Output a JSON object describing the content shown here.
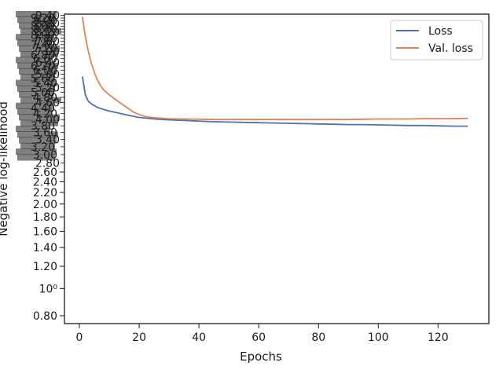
{
  "chart_data": {
    "type": "line",
    "xlabel": "Epochs",
    "ylabel": "Negative log-likelihood",
    "xlim": [
      -5,
      137
    ],
    "x_ticks": [
      0,
      20,
      40,
      60,
      80,
      100,
      120
    ],
    "x_tick_labels": [
      "0",
      "20",
      "40",
      "60",
      "80",
      "100",
      "120"
    ],
    "y_scale": "log",
    "ylim": [
      0.75,
      9.5
    ],
    "y_tick_labels_clean": [
      {
        "value": 0.8,
        "label": "0.80"
      },
      {
        "value": 1.0,
        "label": "10⁰"
      },
      {
        "value": 1.2,
        "label": "1.20"
      },
      {
        "value": 1.4,
        "label": "1.40"
      },
      {
        "value": 1.6,
        "label": "1.60"
      },
      {
        "value": 1.8,
        "label": "1.80"
      },
      {
        "value": 2.0,
        "label": "2.00"
      },
      {
        "value": 2.2,
        "label": "2.20"
      },
      {
        "value": 2.4,
        "label": "2.40"
      },
      {
        "value": 2.6,
        "label": "2.60"
      }
    ],
    "legend": {
      "position": "top-right",
      "entries": [
        "Loss",
        "Val. loss"
      ]
    },
    "grid": false,
    "series": [
      {
        "name": "Loss",
        "color": "#4c72b0",
        "x": [
          1,
          2,
          3,
          4,
          6,
          8,
          10,
          13,
          16,
          20,
          25,
          30,
          35,
          40,
          45,
          50,
          55,
          60,
          65,
          70,
          75,
          80,
          85,
          90,
          95,
          100,
          105,
          110,
          115,
          120,
          125,
          130
        ],
        "y": [
          5.7,
          4.9,
          4.65,
          4.55,
          4.42,
          4.35,
          4.29,
          4.22,
          4.15,
          4.07,
          4.02,
          3.99,
          3.97,
          3.95,
          3.93,
          3.92,
          3.91,
          3.9,
          3.89,
          3.88,
          3.87,
          3.86,
          3.85,
          3.84,
          3.84,
          3.83,
          3.82,
          3.81,
          3.81,
          3.8,
          3.79,
          3.79
        ]
      },
      {
        "name": "Val. loss",
        "color": "#dd8452",
        "x": [
          1,
          2,
          3,
          4,
          5,
          6,
          7,
          8,
          10,
          12,
          15,
          18,
          20,
          22,
          25,
          30,
          35,
          40,
          45,
          50,
          55,
          60,
          65,
          70,
          75,
          80,
          85,
          90,
          95,
          100,
          105,
          110,
          115,
          120,
          125,
          130
        ],
        "y": [
          9.3,
          7.9,
          7.0,
          6.35,
          5.9,
          5.55,
          5.3,
          5.12,
          4.9,
          4.72,
          4.48,
          4.26,
          4.17,
          4.1,
          4.06,
          4.03,
          4.02,
          4.01,
          4.0,
          4.0,
          4.0,
          4.0,
          4.0,
          4.0,
          4.0,
          4.0,
          4.0,
          4.0,
          4.01,
          4.02,
          4.02,
          4.02,
          4.03,
          4.03,
          4.03,
          4.04
        ]
      }
    ]
  }
}
